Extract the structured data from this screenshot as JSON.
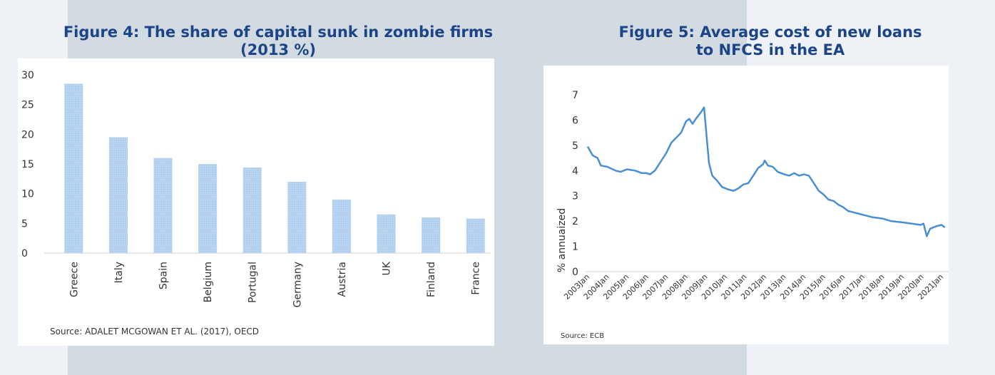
{
  "chart_data": [
    {
      "type": "bar",
      "title": "Figure 4: The share of capital sunk in zombie firms",
      "subtitle": "(2013 %)",
      "categories": [
        "Greece",
        "Italy",
        "Spain",
        "Belgium",
        "Portugal",
        "Germany",
        "Austria",
        "UK",
        "Finland",
        "France"
      ],
      "values": [
        28.5,
        19.5,
        16,
        15,
        14.4,
        12,
        9,
        6.5,
        6,
        5.8
      ],
      "yticks": [
        "0",
        "5",
        "10",
        "15",
        "20",
        "25",
        "30"
      ],
      "ylim": [
        0,
        30
      ],
      "xlabel": "",
      "ylabel": "",
      "grid": false,
      "source": "Source: ADALET MCGOWAN ET AL. (2017), OECD",
      "bar_color": "#b3d1f0"
    },
    {
      "type": "line",
      "title": "Figure 5: Average cost of new loans",
      "subtitle": "to NFCS in the EA",
      "ylabel": "% annuaized",
      "xlabel": "",
      "ylim": [
        0,
        7
      ],
      "yticks": [
        "0",
        "1",
        "2",
        "3",
        "4",
        "5",
        "6",
        "7"
      ],
      "xticks": [
        "2003Jan",
        "2004Jan",
        "2005Jan",
        "2006Jan",
        "2007Jan",
        "2008Jan",
        "2009Jan",
        "2010Jan",
        "2011Jan",
        "2012Jan",
        "2013Jan",
        "2014Jan",
        "2015Jan",
        "2016Jan",
        "2017Jan",
        "2018Jan",
        "2019Jan",
        "2020Jan",
        "2021Jan"
      ],
      "grid": false,
      "source": "Source: ECB",
      "line_color": "#4a8fd4",
      "series": [
        {
          "x": [
            "2003-01",
            "2003-04",
            "2003-07",
            "2003-09",
            "2004-01",
            "2004-06",
            "2004-09",
            "2005-01",
            "2005-06",
            "2005-10",
            "2006-01",
            "2006-03",
            "2006-06",
            "2006-09",
            "2007-01",
            "2007-04",
            "2007-07",
            "2007-10",
            "2008-01",
            "2008-03",
            "2008-05",
            "2008-07",
            "2008-10",
            "2008-12",
            "2009-03",
            "2009-05",
            "2009-08",
            "2009-11",
            "2010-03",
            "2010-06",
            "2010-09",
            "2010-12",
            "2011-03",
            "2011-06",
            "2011-09",
            "2011-12",
            "2012-01",
            "2012-03",
            "2012-06",
            "2012-09",
            "2013-01",
            "2013-04",
            "2013-07",
            "2013-10",
            "2014-01",
            "2014-04",
            "2014-07",
            "2014-10",
            "2015-01",
            "2015-04",
            "2015-07",
            "2015-10",
            "2016-01",
            "2016-04",
            "2016-07",
            "2016-10",
            "2017-01",
            "2017-07",
            "2018-01",
            "2018-06",
            "2019-01",
            "2019-07",
            "2019-12",
            "2020-02",
            "2020-04",
            "2020-06",
            "2020-10",
            "2021-01",
            "2021-03"
          ],
          "y": [
            4.95,
            4.6,
            4.5,
            4.2,
            4.15,
            4.0,
            3.95,
            4.05,
            4.0,
            3.9,
            3.9,
            3.85,
            4.0,
            4.3,
            4.7,
            5.1,
            5.3,
            5.5,
            5.95,
            6.05,
            5.85,
            6.05,
            6.3,
            6.5,
            4.3,
            3.8,
            3.6,
            3.35,
            3.25,
            3.2,
            3.3,
            3.45,
            3.5,
            3.8,
            4.1,
            4.25,
            4.4,
            4.2,
            4.15,
            3.95,
            3.85,
            3.8,
            3.9,
            3.8,
            3.85,
            3.8,
            3.5,
            3.2,
            3.05,
            2.85,
            2.8,
            2.65,
            2.55,
            2.4,
            2.35,
            2.3,
            2.25,
            2.15,
            2.1,
            2.0,
            1.95,
            1.9,
            1.85,
            1.9,
            1.4,
            1.7,
            1.8,
            1.85,
            1.75
          ]
        }
      ]
    }
  ]
}
